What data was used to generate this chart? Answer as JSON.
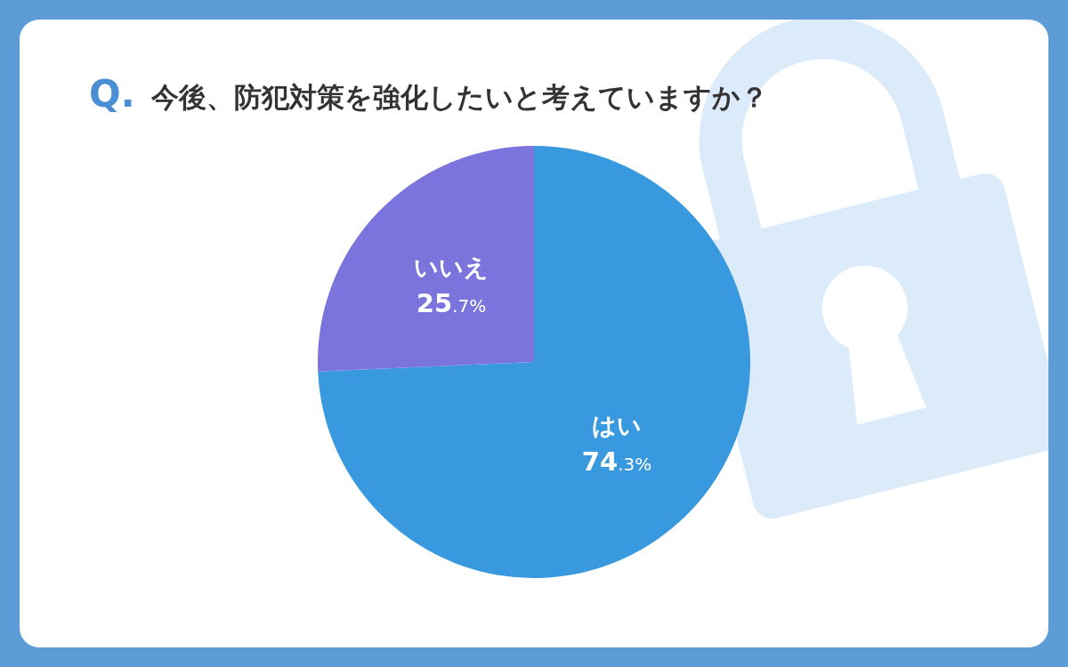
{
  "chart_data": {
    "type": "pie",
    "title": "Q. 今後、防犯対策を強化したいと考えていますか？",
    "categories": [
      "はい",
      "いいえ"
    ],
    "values": [
      74.3,
      25.7
    ],
    "colors": [
      "#3999df",
      "#7a74dc"
    ],
    "value_labels": [
      "74.3%",
      "25.7%"
    ]
  }
}
